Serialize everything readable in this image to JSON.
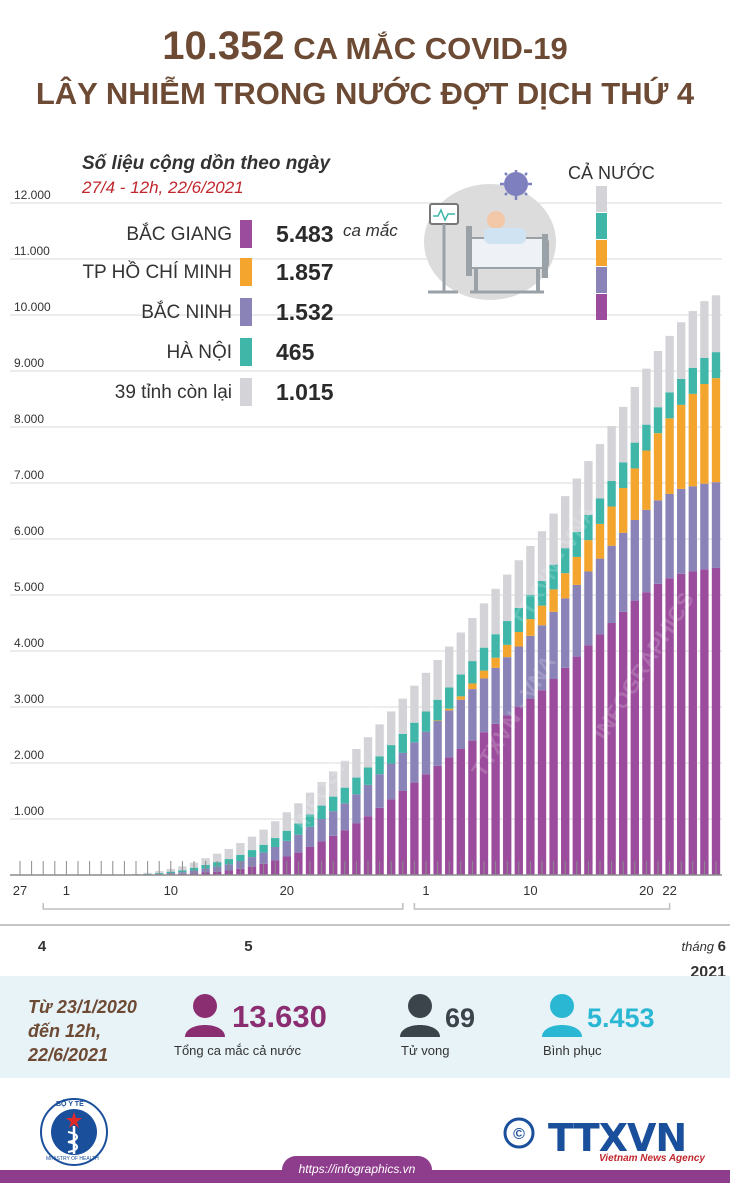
{
  "title": {
    "number": "10.352",
    "line1_rest": " CA MẮC COVID-19",
    "line2": "LÂY NHIỄM TRONG NƯỚC ĐỢT DỊCH THỨ 4"
  },
  "legend": {
    "subtitle": "Số liệu cộng dồn theo ngày",
    "date_range": "27/4 - 12h, 22/6/2021",
    "unit": "ca mắc",
    "items": [
      {
        "label": "BẮC GIANG",
        "value": "5.483",
        "color": "#9b4c9c"
      },
      {
        "label": "TP HỒ CHÍ MINH",
        "value": "1.857",
        "color": "#f4a52d"
      },
      {
        "label": "BẮC NINH",
        "value": "1.532",
        "color": "#8a83b8"
      },
      {
        "label": "HÀ NỘI",
        "value": "465",
        "color": "#3fb6a8"
      },
      {
        "label": "39 tỉnh còn lại",
        "value": "1.015",
        "color": "#d3d3d8"
      }
    ],
    "ca_nuoc_label": "CẢ NƯỚC"
  },
  "chart_data": {
    "type": "bar",
    "stacked": true,
    "title": "10.352 CA MẮC COVID-19 LÂY NHIỄM TRONG NƯỚC ĐỢT DỊCH THỨ 4",
    "ylim": [
      0,
      12000
    ],
    "y_ticks": [
      "12.000",
      "11.000",
      "10.000",
      "9.000",
      "8.000",
      "7.000",
      "6.000",
      "5.000",
      "4.000",
      "3.000",
      "2.000",
      "1.000"
    ],
    "x_tick_labels": [
      "27",
      "1",
      "10",
      "20",
      "1",
      "10",
      "20",
      "22"
    ],
    "x_tick_day_index": [
      0,
      4,
      13,
      23,
      35,
      44,
      54,
      56
    ],
    "month_labels": [
      {
        "text": "4",
        "day_index": 0
      },
      {
        "text": "5",
        "day_index": 19
      }
    ],
    "month_6_prefix": "tháng ",
    "month_6": "6",
    "year": "2021",
    "series_order": [
      "Bắc Giang",
      "Bắc Ninh",
      "TP Hồ Chí Minh",
      "Hà Nội",
      "39 tỉnh còn lại"
    ],
    "series": [
      {
        "name": "Bắc Giang",
        "color": "#9b4c9c",
        "values": [
          0,
          0,
          0,
          0,
          0,
          0,
          0,
          0,
          0,
          0,
          2,
          5,
          10,
          15,
          20,
          30,
          45,
          60,
          80,
          110,
          150,
          200,
          260,
          330,
          400,
          500,
          600,
          700,
          800,
          920,
          1050,
          1200,
          1350,
          1500,
          1650,
          1800,
          1950,
          2100,
          2250,
          2400,
          2550,
          2700,
          2850,
          3000,
          3150,
          3300,
          3500,
          3700,
          3900,
          4100,
          4300,
          4500,
          4700,
          4900,
          5050,
          5200,
          5300,
          5380,
          5420,
          5460,
          5483
        ]
      },
      {
        "name": "Bắc Ninh",
        "color": "#8a83b8",
        "values": [
          0,
          0,
          0,
          0,
          0,
          0,
          0,
          0,
          0,
          0,
          2,
          5,
          10,
          20,
          30,
          50,
          70,
          90,
          110,
          140,
          170,
          200,
          240,
          280,
          320,
          360,
          400,
          440,
          480,
          520,
          560,
          600,
          640,
          680,
          720,
          760,
          800,
          840,
          880,
          920,
          960,
          1000,
          1040,
          1080,
          1120,
          1160,
          1200,
          1240,
          1280,
          1320,
          1350,
          1380,
          1410,
          1440,
          1470,
          1490,
          1505,
          1515,
          1522,
          1528,
          1532
        ]
      },
      {
        "name": "TP Hồ Chí Minh",
        "color": "#f4a52d",
        "values": [
          0,
          0,
          0,
          0,
          0,
          0,
          0,
          0,
          0,
          0,
          0,
          0,
          0,
          0,
          0,
          0,
          0,
          0,
          0,
          0,
          0,
          0,
          0,
          0,
          0,
          0,
          0,
          0,
          0,
          0,
          0,
          0,
          0,
          0,
          0,
          0,
          10,
          30,
          60,
          100,
          140,
          180,
          220,
          260,
          300,
          350,
          400,
          450,
          500,
          560,
          620,
          700,
          800,
          920,
          1060,
          1200,
          1350,
          1500,
          1650,
          1780,
          1857
        ]
      },
      {
        "name": "Hà Nội",
        "color": "#3fb6a8",
        "values": [
          0,
          0,
          0,
          0,
          0,
          0,
          0,
          0,
          0,
          0,
          5,
          10,
          15,
          25,
          35,
          50,
          65,
          80,
          95,
          110,
          125,
          140,
          160,
          180,
          200,
          220,
          240,
          260,
          280,
          300,
          310,
          320,
          330,
          340,
          350,
          360,
          370,
          380,
          390,
          400,
          410,
          420,
          425,
          430,
          435,
          440,
          443,
          446,
          449,
          452,
          455,
          457,
          459,
          461,
          462,
          463,
          464,
          464,
          465,
          465,
          465
        ]
      },
      {
        "name": "39 tỉnh còn lại",
        "color": "#d3d3d8",
        "values": [
          0,
          0,
          0,
          0,
          0,
          0,
          0,
          0,
          0,
          0,
          10,
          20,
          35,
          50,
          70,
          90,
          120,
          150,
          180,
          210,
          240,
          270,
          300,
          330,
          360,
          390,
          420,
          450,
          480,
          510,
          540,
          570,
          600,
          630,
          660,
          690,
          710,
          730,
          750,
          770,
          790,
          810,
          830,
          850,
          870,
          890,
          910,
          930,
          950,
          960,
          970,
          980,
          990,
          995,
          1000,
          1005,
          1008,
          1011,
          1013,
          1014,
          1015
        ]
      }
    ]
  },
  "summary": {
    "since_line1": "Từ 23/1/2020",
    "since_line2": "đến 12h,",
    "since_line3": "22/6/2021",
    "total": {
      "value": "13.630",
      "label": "Tổng ca mắc cả nước",
      "color": "#8b2e71"
    },
    "deaths": {
      "value": "69",
      "label": "Tử vong",
      "color": "#3b444b"
    },
    "recovered": {
      "value": "5.453",
      "label": "Bình phục",
      "color": "#29b7d3"
    }
  },
  "footer": {
    "ministry_text": "BỘ Y TẾ",
    "ministry_en": "MINISTRY OF HEALTH",
    "agency": "TTXVN",
    "agency_en": "Vietnam News Agency",
    "url": "https://infographics.vn",
    "copyright_symbol": "©"
  },
  "watermarks": [
    "TTXVN - VNA",
    "TTXVN - VNA",
    "INFOGRAPHICS",
    "INFOGRAPHICS"
  ]
}
